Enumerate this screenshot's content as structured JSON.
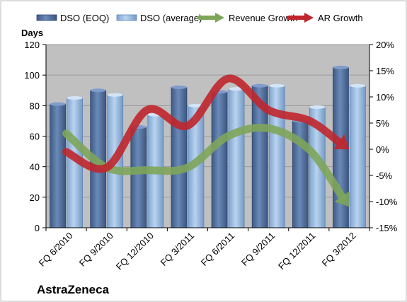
{
  "chart_data": {
    "type": "bar",
    "company": "AstraZeneca",
    "categories": [
      "FQ 6/2010",
      "FQ 9/2010",
      "FQ 12/2010",
      "FQ 3/2011",
      "FQ 6/2011",
      "FQ 9/2011",
      "FQ 12/2011",
      "FQ 3/2012"
    ],
    "y_left": {
      "label": "Days",
      "ylim": [
        0,
        120
      ],
      "ticks": [
        "0",
        "20",
        "40",
        "60",
        "80",
        "100",
        "120"
      ]
    },
    "y_right": {
      "ylim": [
        -15,
        20
      ],
      "ticks": [
        "-15%",
        "-10%",
        "-5%",
        "0%",
        "5%",
        "10%",
        "15%",
        "20%"
      ]
    },
    "series": [
      {
        "name": "DSO (EOQ)",
        "kind": "bar",
        "axis": "left",
        "color": "#4f6d9b",
        "values": [
          81,
          90,
          66,
          92,
          89,
          93,
          70,
          105
        ]
      },
      {
        "name": "DSO (average)",
        "kind": "bar",
        "axis": "left",
        "color": "#8fb4dc",
        "values": [
          85,
          87,
          74,
          80,
          91,
          93,
          79,
          93
        ]
      },
      {
        "name": "Revenue Growth",
        "kind": "arrow-line",
        "axis": "right",
        "color": "#7ea55a",
        "values": [
          3,
          -3.5,
          -4,
          -3.5,
          2.5,
          4,
          0,
          -11
        ]
      },
      {
        "name": "AR Growth",
        "kind": "arrow-line",
        "axis": "right",
        "color": "#c0262c",
        "values": [
          -0.5,
          -3.5,
          7.5,
          4.5,
          13.5,
          7.5,
          5.5,
          0
        ]
      }
    ],
    "grid": true,
    "plot_background": "#c0c0c0",
    "legend_position": "top"
  }
}
